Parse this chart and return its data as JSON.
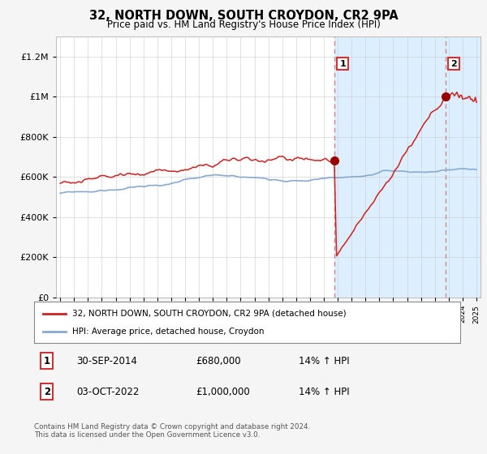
{
  "title": "32, NORTH DOWN, SOUTH CROYDON, CR2 9PA",
  "subtitle": "Price paid vs. HM Land Registry's House Price Index (HPI)",
  "legend_label1": "32, NORTH DOWN, SOUTH CROYDON, CR2 9PA (detached house)",
  "legend_label2": "HPI: Average price, detached house, Croydon",
  "ann1_label": "1",
  "ann1_date": "30-SEP-2014",
  "ann1_price": "£680,000",
  "ann1_hpi": "14% ↑ HPI",
  "ann1_year": 2014.75,
  "ann1_value": 680000,
  "ann2_label": "2",
  "ann2_date": "03-OCT-2022",
  "ann2_price": "£1,000,000",
  "ann2_hpi": "14% ↑ HPI",
  "ann2_year": 2022.75,
  "ann2_value": 1000000,
  "ylim": [
    0,
    1300000
  ],
  "yticks": [
    0,
    200000,
    400000,
    600000,
    800000,
    1000000,
    1200000
  ],
  "ytick_labels": [
    "£0",
    "£200K",
    "£400K",
    "£600K",
    "£800K",
    "£1M",
    "£1.2M"
  ],
  "fig_bg": "#f5f5f5",
  "plot_bg": "#ffffff",
  "shade_color": "#ddeeff",
  "dashed_color": "#cc8888",
  "line_red": "#cc2222",
  "line_blue": "#88aad0",
  "grid_color": "#cccccc",
  "marker_color": "#990000",
  "xstart": 1995,
  "xend": 2025,
  "footer": "Contains HM Land Registry data © Crown copyright and database right 2024.\nThis data is licensed under the Open Government Licence v3.0."
}
